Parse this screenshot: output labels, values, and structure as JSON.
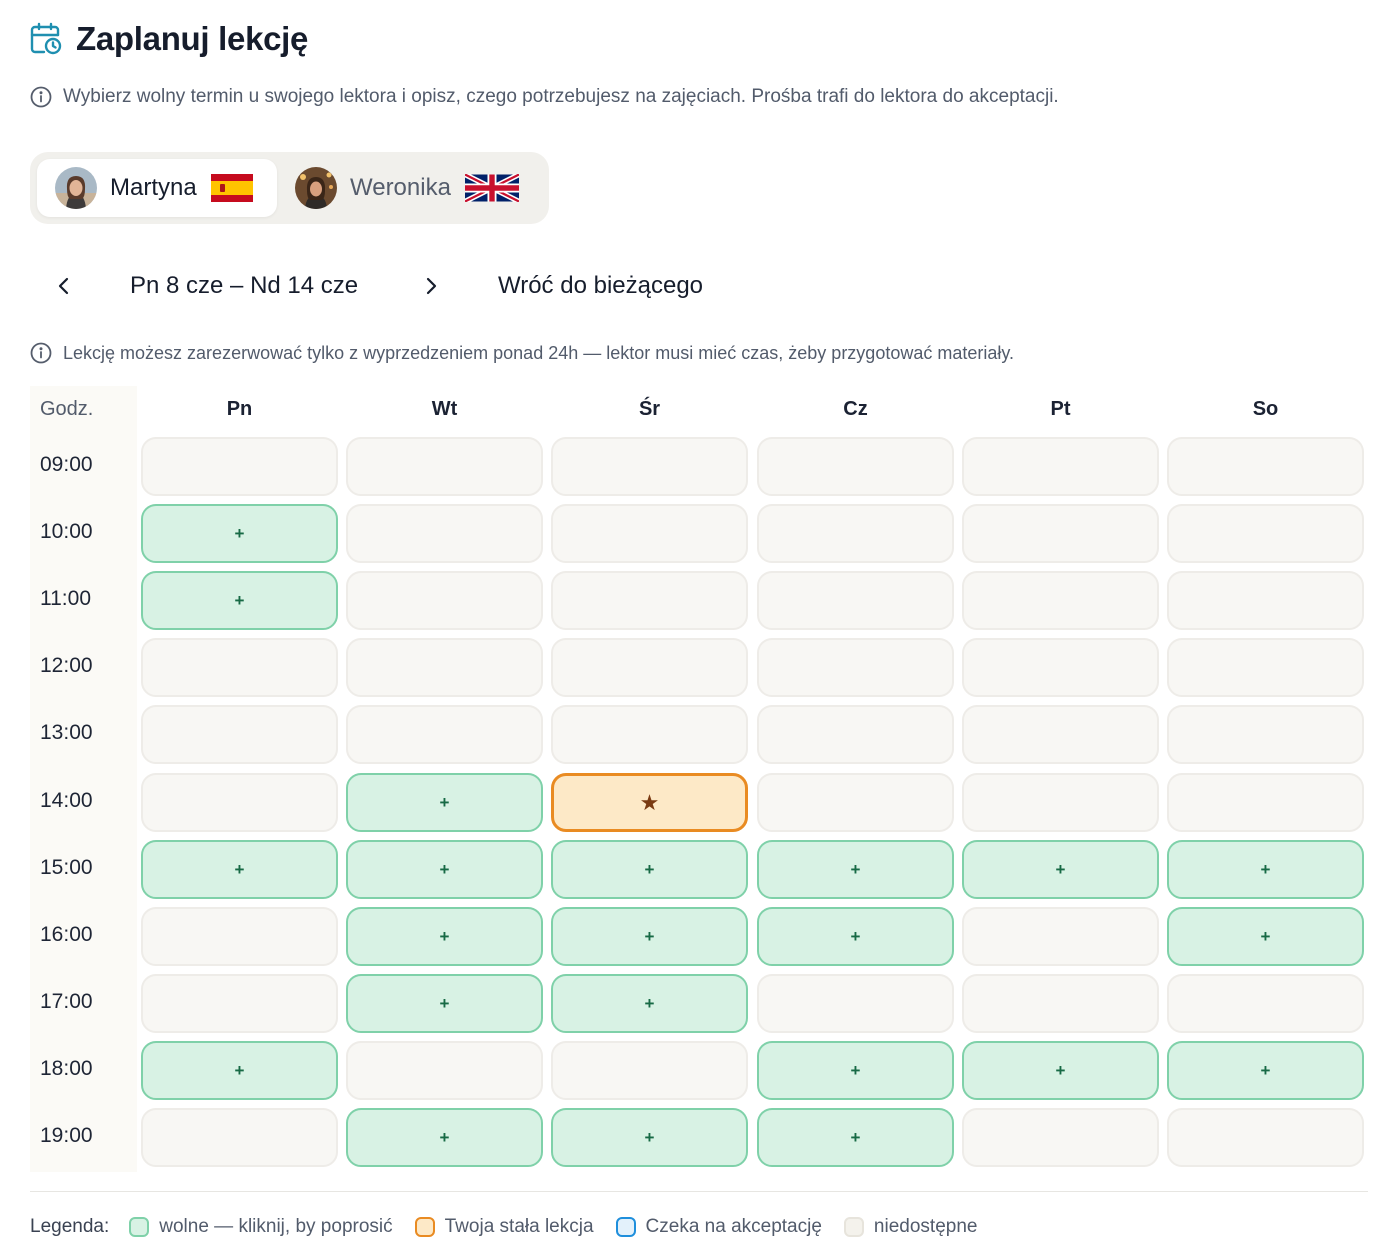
{
  "header": {
    "title": "Zaplanuj lekcję",
    "subtitle": "Wybierz wolny termin u swojego lektora i opisz, czego potrzebujesz na zajęciach. Prośba trafi do lektora do akceptacji."
  },
  "tutors": [
    {
      "name": "Martyna",
      "flag": "spain-flag-icon",
      "active": true
    },
    {
      "name": "Weronika",
      "flag": "uk-flag-icon",
      "active": false
    }
  ],
  "week_nav": {
    "range": "Pn 8 cze – Nd 14 cze",
    "back_label": "Wróć do bieżącego"
  },
  "booking_note": "Lekcję możesz zarezerwować tylko z wyprzedzeniem ponad 24h — lektor musi mieć czas, żeby przygotować materiały.",
  "calendar": {
    "hours_header": "Godz.",
    "days": [
      "Pn",
      "Wt",
      "Śr",
      "Cz",
      "Pt",
      "So"
    ],
    "hours": [
      "09:00",
      "10:00",
      "11:00",
      "12:00",
      "13:00",
      "14:00",
      "15:00",
      "16:00",
      "17:00",
      "18:00",
      "19:00"
    ],
    "slots": [
      [
        "unavailable",
        "unavailable",
        "unavailable",
        "unavailable",
        "unavailable",
        "unavailable"
      ],
      [
        "free",
        "unavailable",
        "unavailable",
        "unavailable",
        "unavailable",
        "unavailable"
      ],
      [
        "free",
        "unavailable",
        "unavailable",
        "unavailable",
        "unavailable",
        "unavailable"
      ],
      [
        "unavailable",
        "unavailable",
        "unavailable",
        "unavailable",
        "unavailable",
        "unavailable"
      ],
      [
        "unavailable",
        "unavailable",
        "unavailable",
        "unavailable",
        "unavailable",
        "unavailable"
      ],
      [
        "unavailable",
        "free",
        "fixed",
        "unavailable",
        "unavailable",
        "unavailable"
      ],
      [
        "free",
        "free",
        "free",
        "free",
        "free",
        "free"
      ],
      [
        "unavailable",
        "free",
        "free",
        "free",
        "unavailable",
        "free"
      ],
      [
        "unavailable",
        "free",
        "free",
        "unavailable",
        "unavailable",
        "unavailable"
      ],
      [
        "free",
        "unavailable",
        "unavailable",
        "free",
        "free",
        "free"
      ],
      [
        "unavailable",
        "free",
        "free",
        "free",
        "unavailable",
        "unavailable"
      ]
    ],
    "free_symbol": "+",
    "fixed_symbol": "★"
  },
  "legend": {
    "title": "Legenda:",
    "items": [
      {
        "label": "wolne — kliknij, by poprosić",
        "type": "free"
      },
      {
        "label": "Twoja stała lekcja",
        "type": "fixed"
      },
      {
        "label": "Czeka na akceptację",
        "type": "pending"
      },
      {
        "label": "niedostępne",
        "type": "unavailable"
      }
    ]
  },
  "colors": {
    "free_bg": "#d8f2e4",
    "free_border": "#7fd1a9",
    "fixed_bg": "#fde9c7",
    "fixed_border": "#e98b22",
    "pending_border": "#1f8fdc",
    "accent": "#1f8fb0"
  }
}
